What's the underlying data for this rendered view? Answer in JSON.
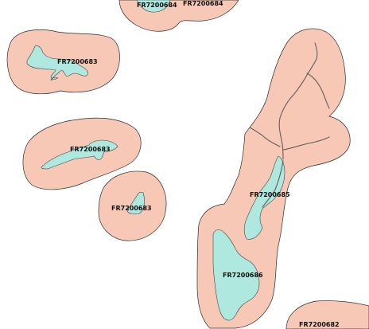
{
  "colors": {
    "background": "#ffffff",
    "buffer_zone": "#f8c8b6",
    "water_body": "#aee8de",
    "outline": "#2b2b2b",
    "river": "#5f5f5f",
    "label": "#111111"
  },
  "labels": {
    "top_left": "FR7200684",
    "top_right": "FR7200684",
    "left_upper": "FR7200683",
    "left_middle": "FR7200683",
    "left_lower": "FR7200683",
    "right_middle": "FR7200685",
    "right_lower": "FR7200686",
    "bottom_right": "FR7200682"
  }
}
